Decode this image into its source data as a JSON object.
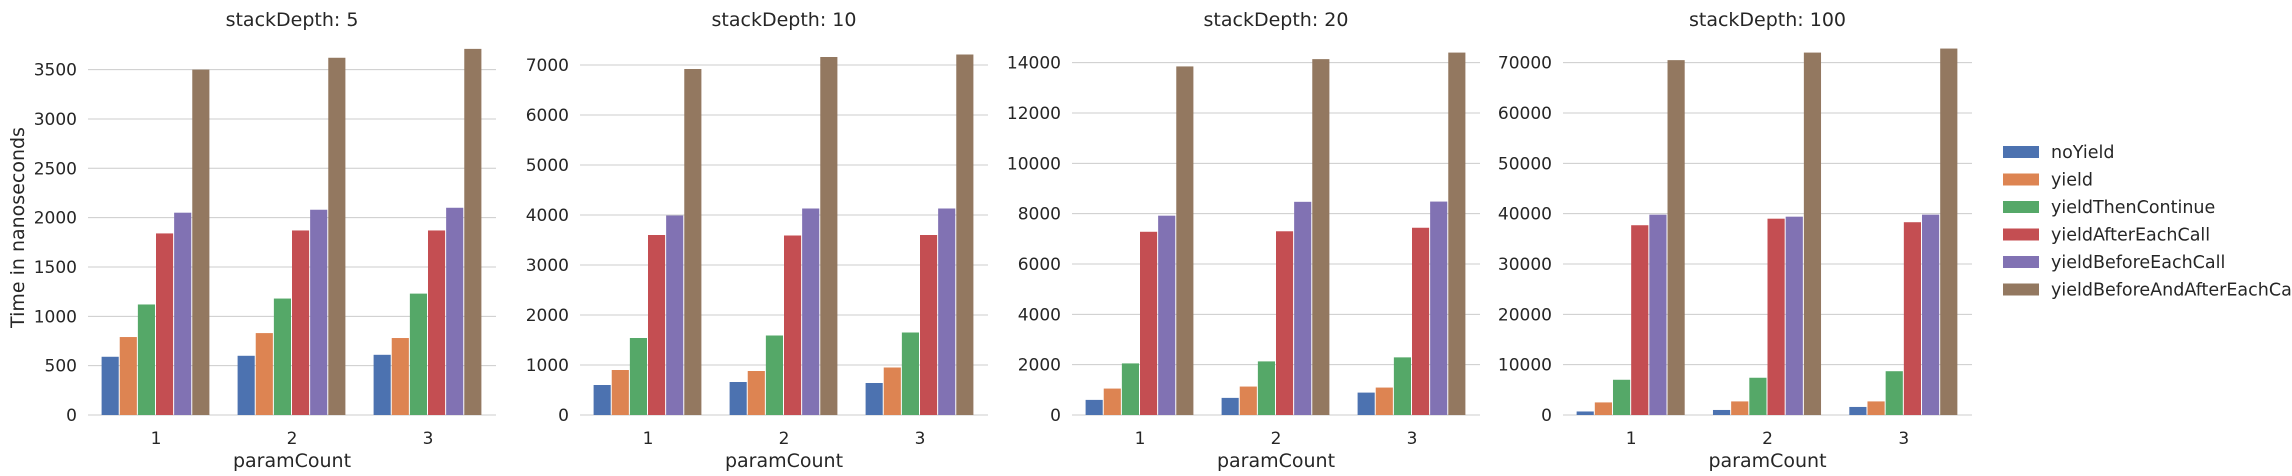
{
  "chart_data": [
    {
      "type": "bar",
      "title": "stackDepth: 5",
      "xlabel": "paramCount",
      "ylabel": "Time in nanoseconds",
      "categories": [
        "1",
        "2",
        "3"
      ],
      "ylim": [
        0,
        3800
      ],
      "yticks": [
        0,
        500,
        1000,
        1500,
        2000,
        2500,
        3000,
        3500
      ],
      "grid": true,
      "series": [
        {
          "name": "noYield",
          "values": [
            590,
            600,
            610
          ]
        },
        {
          "name": "yield",
          "values": [
            790,
            830,
            780
          ]
        },
        {
          "name": "yieldThenContinue",
          "values": [
            1120,
            1180,
            1230
          ]
        },
        {
          "name": "yieldAfterEachCall",
          "values": [
            1840,
            1870,
            1870
          ]
        },
        {
          "name": "yieldBeforeEachCall",
          "values": [
            2050,
            2080,
            2100
          ]
        },
        {
          "name": "yieldBeforeAndAfterEachCall",
          "values": [
            3500,
            3620,
            3710
          ]
        }
      ]
    },
    {
      "type": "bar",
      "title": "stackDepth: 10",
      "xlabel": "paramCount",
      "ylabel": "",
      "categories": [
        "1",
        "2",
        "3"
      ],
      "ylim": [
        0,
        7500
      ],
      "yticks": [
        0,
        1000,
        2000,
        3000,
        4000,
        5000,
        6000,
        7000
      ],
      "grid": true,
      "series": [
        {
          "name": "noYield",
          "values": [
            600,
            660,
            640
          ]
        },
        {
          "name": "yield",
          "values": [
            900,
            880,
            950
          ]
        },
        {
          "name": "yieldThenContinue",
          "values": [
            1540,
            1590,
            1650
          ]
        },
        {
          "name": "yieldAfterEachCall",
          "values": [
            3600,
            3590,
            3600
          ]
        },
        {
          "name": "yieldBeforeEachCall",
          "values": [
            3990,
            4130,
            4130
          ]
        },
        {
          "name": "yieldBeforeAndAfterEachCall",
          "values": [
            6920,
            7160,
            7210
          ]
        }
      ]
    },
    {
      "type": "bar",
      "title": "stackDepth: 20",
      "xlabel": "paramCount",
      "ylabel": "",
      "categories": [
        "1",
        "2",
        "3"
      ],
      "ylim": [
        0,
        14900
      ],
      "yticks": [
        0,
        2000,
        4000,
        6000,
        8000,
        10000,
        12000,
        14000
      ],
      "grid": true,
      "series": [
        {
          "name": "noYield",
          "values": [
            600,
            680,
            890
          ]
        },
        {
          "name": "yield",
          "values": [
            1050,
            1130,
            1090
          ]
        },
        {
          "name": "yieldThenContinue",
          "values": [
            2050,
            2130,
            2290
          ]
        },
        {
          "name": "yieldAfterEachCall",
          "values": [
            7280,
            7300,
            7440
          ]
        },
        {
          "name": "yieldBeforeEachCall",
          "values": [
            7920,
            8470,
            8480
          ]
        },
        {
          "name": "yieldBeforeAndAfterEachCall",
          "values": [
            13850,
            14140,
            14400
          ]
        }
      ]
    },
    {
      "type": "bar",
      "title": "stackDepth: 100",
      "xlabel": "paramCount",
      "ylabel": "",
      "categories": [
        "1",
        "2",
        "3"
      ],
      "ylim": [
        0,
        74500
      ],
      "yticks": [
        0,
        10000,
        20000,
        30000,
        40000,
        50000,
        60000,
        70000
      ],
      "grid": true,
      "series": [
        {
          "name": "noYield",
          "values": [
            700,
            1000,
            1600
          ]
        },
        {
          "name": "yield",
          "values": [
            2500,
            2700,
            2700
          ]
        },
        {
          "name": "yieldThenContinue",
          "values": [
            7000,
            7400,
            8700
          ]
        },
        {
          "name": "yieldAfterEachCall",
          "values": [
            37700,
            39000,
            38300
          ]
        },
        {
          "name": "yieldBeforeEachCall",
          "values": [
            39800,
            39400,
            39800
          ]
        },
        {
          "name": "yieldBeforeAndAfterEachCall",
          "values": [
            70500,
            72000,
            72800
          ]
        }
      ]
    }
  ],
  "legend": {
    "placement": "right",
    "entries": [
      "noYield",
      "yield",
      "yieldThenContinue",
      "yieldAfterEachCall",
      "yieldBeforeEachCall",
      "yieldBeforeAndAfterEachCall"
    ]
  },
  "colors": {
    "noYield": "#4c72b0",
    "yield": "#dd8452",
    "yieldThenContinue": "#55a868",
    "yieldAfterEachCall": "#c44e52",
    "yieldBeforeEachCall": "#8172b3",
    "yieldBeforeAndAfterEachCall": "#937860",
    "grid": "#cccccc",
    "text": "#262626"
  }
}
